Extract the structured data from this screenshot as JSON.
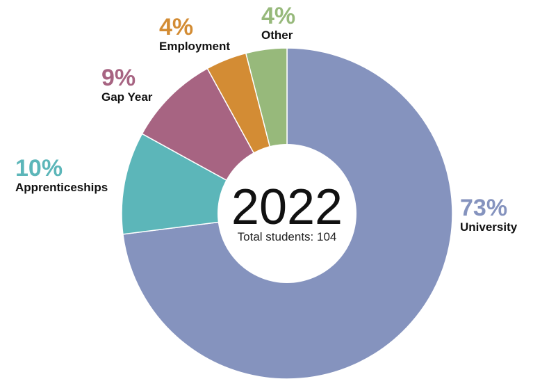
{
  "chart_data": {
    "type": "pie",
    "center": {
      "year": "2022",
      "subtitle": "Total students: 104"
    },
    "slices": [
      {
        "name": "University",
        "value": 73,
        "percent_label": "73%",
        "color": "#8593BE"
      },
      {
        "name": "Apprenticeships",
        "value": 10,
        "percent_label": "10%",
        "color": "#5CB6B9"
      },
      {
        "name": "Gap Year",
        "value": 9,
        "percent_label": "9%",
        "color": "#A76482"
      },
      {
        "name": "Employment",
        "value": 4,
        "percent_label": "4%",
        "color": "#D38C34"
      },
      {
        "name": "Other",
        "value": 4,
        "percent_label": "4%",
        "color": "#97B97B"
      }
    ]
  }
}
